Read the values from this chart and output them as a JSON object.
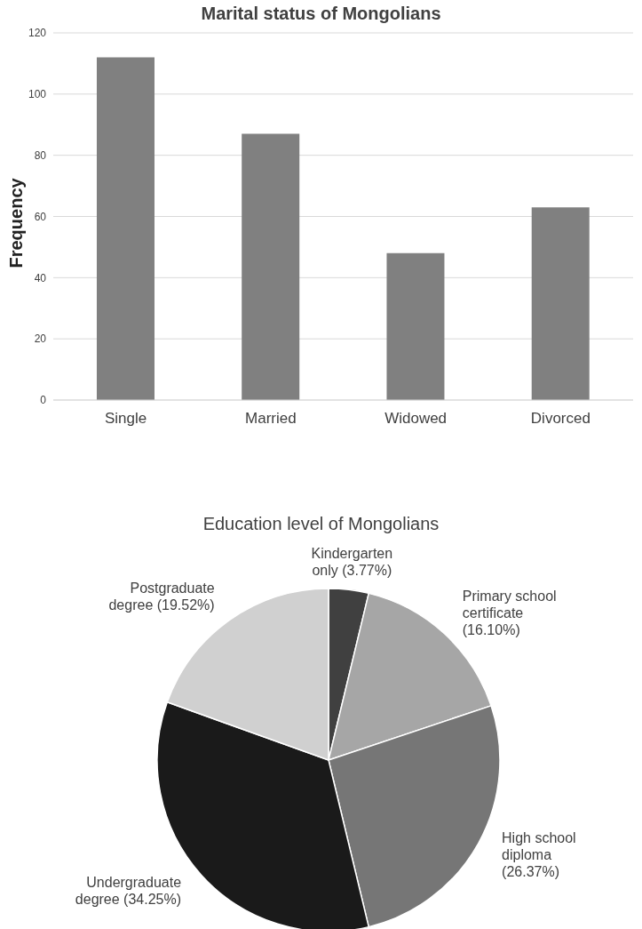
{
  "chart_data": [
    {
      "type": "bar",
      "title": "Marital status of Mongolians",
      "ylabel": "Frequency",
      "categories": [
        "Single",
        "Married",
        "Widowed",
        "Divorced"
      ],
      "values": [
        112,
        87,
        48,
        63
      ],
      "color": "#808080",
      "ylim": [
        0,
        120
      ],
      "yticks": [
        0,
        20,
        40,
        60,
        80,
        100,
        120
      ],
      "grid": "y"
    },
    {
      "type": "pie",
      "title": "Education level of Mongolians",
      "categories": [
        "Kindergarten only",
        "Primary school certificate",
        "High school diploma",
        "Undergraduate degree",
        "Postgraduate degree"
      ],
      "values": [
        3.77,
        16.1,
        26.37,
        34.25,
        19.52
      ],
      "value_labels": [
        "(3.77%)",
        "(16.10%)",
        "(26.37%)",
        "(34.25%)",
        "(19.52%)"
      ],
      "colors": [
        "#404040",
        "#a6a6a6",
        "#767676",
        "#1a1a1a",
        "#d0d0d0"
      ]
    }
  ]
}
